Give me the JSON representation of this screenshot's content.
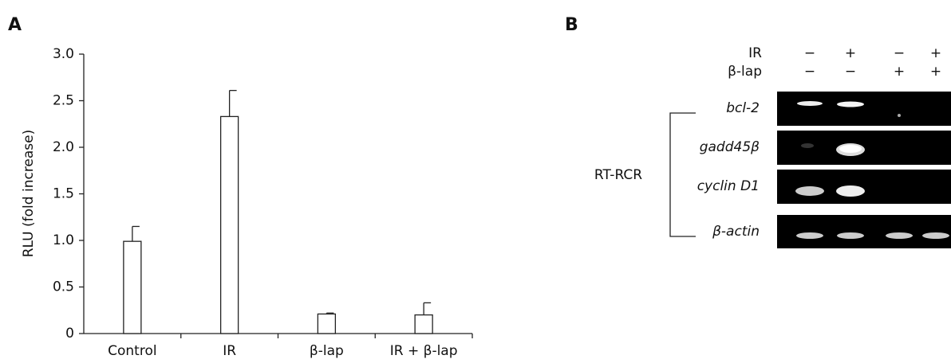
{
  "panel_labels": [
    "A",
    "B"
  ],
  "chart_data": {
    "type": "bar",
    "ylabel": "RLU (fold increase)",
    "categories": [
      "Control",
      "IR",
      "β-lap",
      "IR + β-lap"
    ],
    "values": [
      0.99,
      2.33,
      0.21,
      0.2
    ],
    "errors": [
      0.16,
      0.28,
      0.01,
      0.13
    ],
    "color": "#ffffff",
    "ylim": [
      0,
      3.0
    ],
    "yticks": [
      0,
      0.5,
      {
        "value": 1.0,
        "label": "1.0"
      },
      1.5,
      {
        "value": 2.0,
        "label": "2.0"
      },
      2.5,
      {
        "value": 3.0,
        "label": "3.0"
      }
    ]
  },
  "gel": {
    "conditions": [
      {
        "name": "IR",
        "signs": [
          "−",
          "+",
          "−",
          "+"
        ]
      },
      {
        "name": "β-lap",
        "signs": [
          "−",
          "−",
          "+",
          "+"
        ]
      }
    ],
    "bands": [
      "bcl-2",
      "gadd45β",
      "cyclin D1",
      "β-actin"
    ],
    "bracket_label": "RT-RCR"
  }
}
